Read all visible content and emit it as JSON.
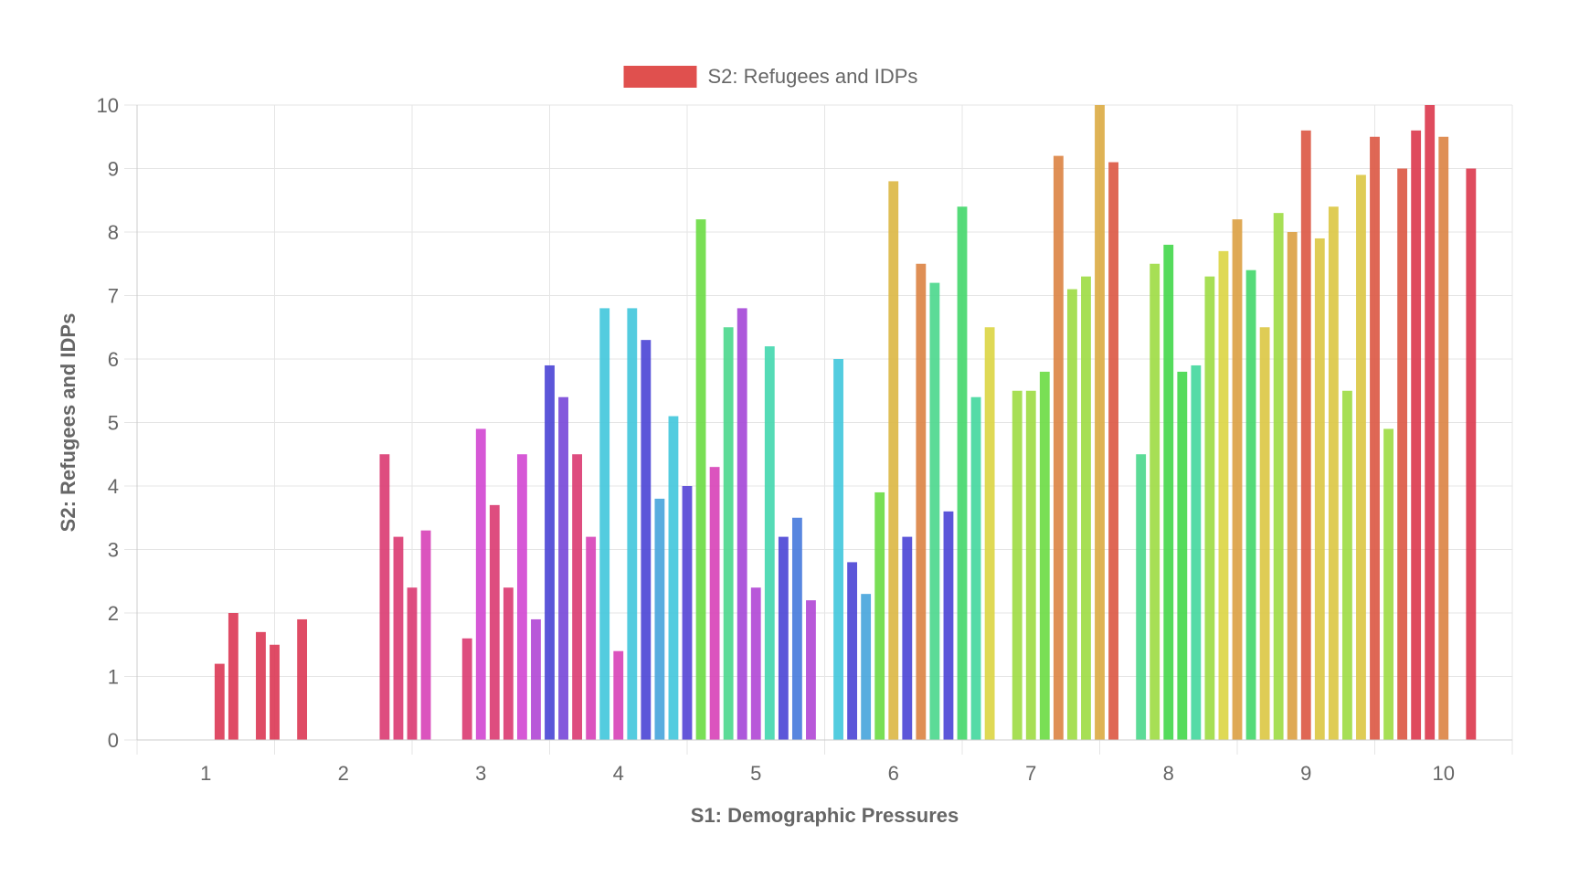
{
  "chart_data": {
    "type": "bar",
    "title": "",
    "xlabel": "S1: Demographic Pressures",
    "ylabel": "S2: Refugees and IDPs",
    "xlim": [
      0.5,
      10.5
    ],
    "ylim": [
      0,
      10
    ],
    "x_ticks": [
      "1",
      "2",
      "3",
      "4",
      "5",
      "6",
      "7",
      "8",
      "9",
      "10"
    ],
    "y_ticks": [
      "0",
      "1",
      "2",
      "3",
      "4",
      "5",
      "6",
      "7",
      "8",
      "9",
      "10"
    ],
    "grid": true,
    "legend": {
      "position": "top-center",
      "label": "S2: Refugees and IDPs",
      "color": "#e0504e"
    },
    "series": [
      {
        "name": "S2: Refugees and IDPs",
        "points": [
          {
            "x": 1.1,
            "y": 1.2,
            "color": "#dc3c58"
          },
          {
            "x": 1.2,
            "y": 2.0,
            "color": "#dc3c58"
          },
          {
            "x": 1.4,
            "y": 1.7,
            "color": "#dc3c58"
          },
          {
            "x": 1.5,
            "y": 1.5,
            "color": "#dc3c58"
          },
          {
            "x": 1.7,
            "y": 1.9,
            "color": "#dc3c58"
          },
          {
            "x": 2.3,
            "y": 4.5,
            "color": "#db3e74"
          },
          {
            "x": 2.4,
            "y": 3.2,
            "color": "#db3e74"
          },
          {
            "x": 2.5,
            "y": 2.4,
            "color": "#db3e74"
          },
          {
            "x": 2.6,
            "y": 3.3,
            "color": "#d845b8"
          },
          {
            "x": 2.9,
            "y": 1.6,
            "color": "#db3e74"
          },
          {
            "x": 3.0,
            "y": 4.9,
            "color": "#d24ad2"
          },
          {
            "x": 3.1,
            "y": 3.7,
            "color": "#db3e74"
          },
          {
            "x": 3.2,
            "y": 2.4,
            "color": "#db3e74"
          },
          {
            "x": 3.3,
            "y": 4.5,
            "color": "#d24ad2"
          },
          {
            "x": 3.4,
            "y": 1.9,
            "color": "#b24ad6"
          },
          {
            "x": 3.5,
            "y": 5.9,
            "color": "#4e48d6"
          },
          {
            "x": 3.6,
            "y": 5.4,
            "color": "#7a4ad9"
          },
          {
            "x": 3.7,
            "y": 4.5,
            "color": "#db3e74"
          },
          {
            "x": 3.8,
            "y": 3.2,
            "color": "#d845b8"
          },
          {
            "x": 3.9,
            "y": 6.8,
            "color": "#44c8dc"
          },
          {
            "x": 4.0,
            "y": 1.4,
            "color": "#d845b8"
          },
          {
            "x": 4.1,
            "y": 6.8,
            "color": "#44c8dc"
          },
          {
            "x": 4.2,
            "y": 6.3,
            "color": "#4e48d6"
          },
          {
            "x": 4.3,
            "y": 3.8,
            "color": "#4aa6dc"
          },
          {
            "x": 4.4,
            "y": 5.1,
            "color": "#44c8dc"
          },
          {
            "x": 4.5,
            "y": 4.0,
            "color": "#5848d6"
          },
          {
            "x": 4.6,
            "y": 8.2,
            "color": "#6edc46"
          },
          {
            "x": 4.7,
            "y": 4.3,
            "color": "#d845b8"
          },
          {
            "x": 4.8,
            "y": 6.5,
            "color": "#4ed88e"
          },
          {
            "x": 4.9,
            "y": 6.8,
            "color": "#a64ad8"
          },
          {
            "x": 5.0,
            "y": 2.4,
            "color": "#b24ad6"
          },
          {
            "x": 5.1,
            "y": 6.2,
            "color": "#46d8b0"
          },
          {
            "x": 5.2,
            "y": 3.2,
            "color": "#4e48d6"
          },
          {
            "x": 5.3,
            "y": 3.5,
            "color": "#4a7cdc"
          },
          {
            "x": 5.4,
            "y": 2.2,
            "color": "#b24ad6"
          },
          {
            "x": 5.6,
            "y": 6.0,
            "color": "#44c8dc"
          },
          {
            "x": 5.7,
            "y": 2.8,
            "color": "#4e48d6"
          },
          {
            "x": 5.8,
            "y": 2.3,
            "color": "#4aa6dc"
          },
          {
            "x": 5.9,
            "y": 3.9,
            "color": "#6edc46"
          },
          {
            "x": 6.0,
            "y": 8.8,
            "color": "#dcb846"
          },
          {
            "x": 6.1,
            "y": 3.2,
            "color": "#4e48d6"
          },
          {
            "x": 6.2,
            "y": 7.5,
            "color": "#dc8646"
          },
          {
            "x": 6.3,
            "y": 7.2,
            "color": "#4ed88e"
          },
          {
            "x": 6.4,
            "y": 3.6,
            "color": "#4e48d6"
          },
          {
            "x": 6.5,
            "y": 8.4,
            "color": "#46d86e"
          },
          {
            "x": 6.6,
            "y": 5.4,
            "color": "#46d8a0"
          },
          {
            "x": 6.7,
            "y": 6.5,
            "color": "#dcd646"
          },
          {
            "x": 6.9,
            "y": 5.5,
            "color": "#a0dc46"
          },
          {
            "x": 7.0,
            "y": 5.5,
            "color": "#a0dc46"
          },
          {
            "x": 7.1,
            "y": 5.8,
            "color": "#6edc46"
          },
          {
            "x": 7.2,
            "y": 9.2,
            "color": "#dc8646"
          },
          {
            "x": 7.3,
            "y": 7.1,
            "color": "#a0dc46"
          },
          {
            "x": 7.4,
            "y": 7.3,
            "color": "#a0dc46"
          },
          {
            "x": 7.5,
            "y": 10.0,
            "color": "#dcac46"
          },
          {
            "x": 7.6,
            "y": 9.1,
            "color": "#dc5a46"
          },
          {
            "x": 7.8,
            "y": 4.5,
            "color": "#4ed88e"
          },
          {
            "x": 7.9,
            "y": 7.5,
            "color": "#a0dc46"
          },
          {
            "x": 8.0,
            "y": 7.8,
            "color": "#46d84e"
          },
          {
            "x": 8.1,
            "y": 5.8,
            "color": "#46d84e"
          },
          {
            "x": 8.2,
            "y": 5.9,
            "color": "#46d8a0"
          },
          {
            "x": 8.3,
            "y": 7.3,
            "color": "#a0dc46"
          },
          {
            "x": 8.4,
            "y": 7.7,
            "color": "#dcd646"
          },
          {
            "x": 8.5,
            "y": 8.2,
            "color": "#dca246"
          },
          {
            "x": 8.6,
            "y": 7.4,
            "color": "#46d86e"
          },
          {
            "x": 8.7,
            "y": 6.5,
            "color": "#dcc846"
          },
          {
            "x": 8.8,
            "y": 8.3,
            "color": "#a0dc46"
          },
          {
            "x": 8.9,
            "y": 8.0,
            "color": "#dca246"
          },
          {
            "x": 9.0,
            "y": 9.6,
            "color": "#dc5a46"
          },
          {
            "x": 9.1,
            "y": 7.9,
            "color": "#dcc846"
          },
          {
            "x": 9.2,
            "y": 8.4,
            "color": "#dcc846"
          },
          {
            "x": 9.3,
            "y": 5.5,
            "color": "#a0dc46"
          },
          {
            "x": 9.4,
            "y": 8.9,
            "color": "#dcc846"
          },
          {
            "x": 9.5,
            "y": 9.5,
            "color": "#dc5a46"
          },
          {
            "x": 9.6,
            "y": 4.9,
            "color": "#a0dc46"
          },
          {
            "x": 9.7,
            "y": 9.0,
            "color": "#dc5a46"
          },
          {
            "x": 9.8,
            "y": 9.6,
            "color": "#dc3c50"
          },
          {
            "x": 9.9,
            "y": 10.0,
            "color": "#dc3c50"
          },
          {
            "x": 10.0,
            "y": 9.5,
            "color": "#dc8646"
          },
          {
            "x": 10.2,
            "y": 9.0,
            "color": "#dc3c50"
          }
        ]
      }
    ]
  }
}
